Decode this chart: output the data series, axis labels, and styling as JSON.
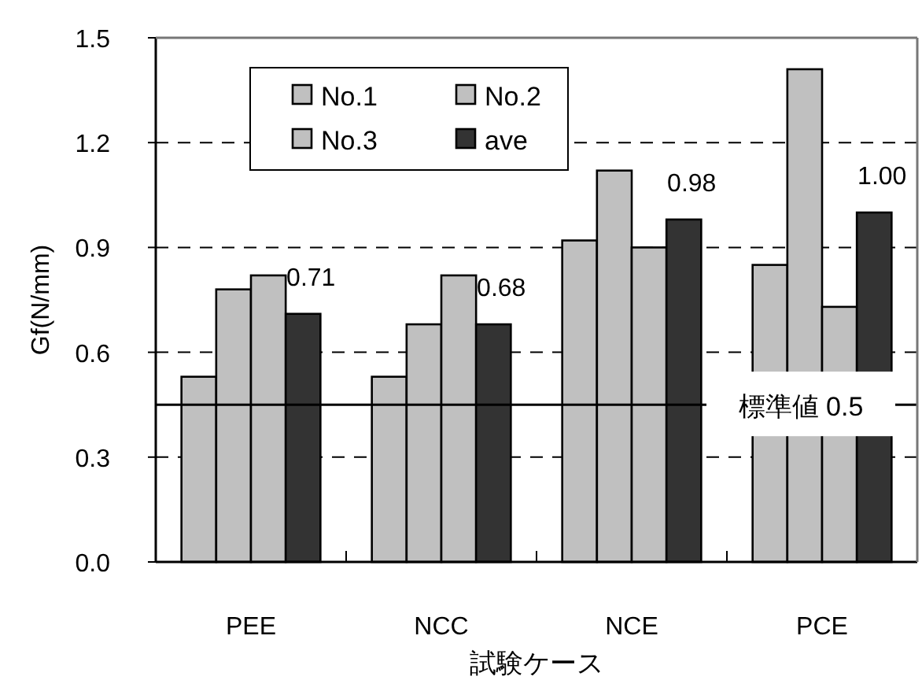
{
  "chart_data": {
    "type": "bar",
    "xlabel": "試験ケース",
    "ylabel": "Gf(N/mm)",
    "categories": [
      "PEE",
      "NCC",
      "NCE",
      "PCE"
    ],
    "series": [
      {
        "name": "No.1",
        "color": "#c0c0c0",
        "values": [
          0.53,
          0.53,
          0.92,
          0.85
        ]
      },
      {
        "name": "No.2",
        "color": "#c0c0c0",
        "values": [
          0.78,
          0.68,
          1.12,
          1.41
        ]
      },
      {
        "name": "No.3",
        "color": "#c0c0c0",
        "values": [
          0.82,
          0.82,
          0.9,
          0.73
        ]
      },
      {
        "name": "ave",
        "color": "#333333",
        "values": [
          0.71,
          0.68,
          0.98,
          1.0
        ],
        "value_labels": [
          "0.71",
          "0.68",
          "0.98",
          "1.00"
        ]
      }
    ],
    "ylim": [
      0,
      1.5
    ],
    "yticks": [
      {
        "value": 0,
        "label": "0.0"
      },
      0.3,
      0.6,
      0.9,
      1.2,
      1.5
    ],
    "grid": "y",
    "legend": "top",
    "ref_lines": [
      {
        "axis": "y",
        "value": 0.45,
        "label": "標準値 0.5"
      }
    ]
  }
}
